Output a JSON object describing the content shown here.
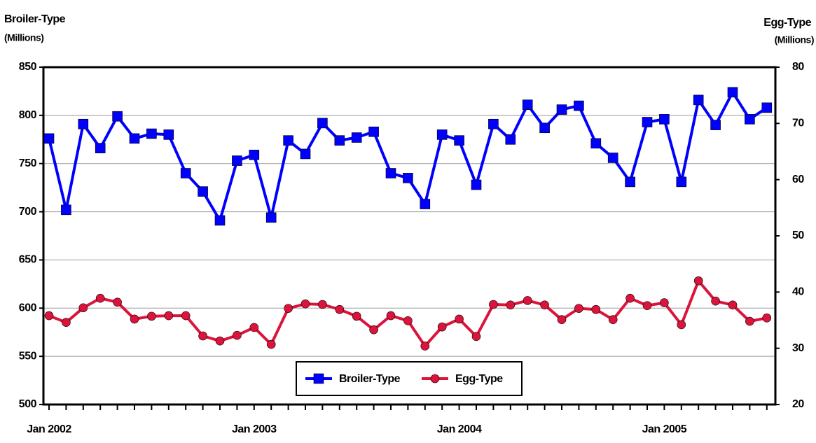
{
  "chart_data": {
    "type": "line",
    "y_label": "Broiler-Type",
    "y_sublabel": "(Millions)",
    "y2_label": "Egg-Type",
    "y2_sublabel": "(Millions)",
    "categories": [
      "Jan 2002",
      null,
      null,
      null,
      null,
      null,
      null,
      null,
      null,
      null,
      null,
      null,
      "Jan 2003",
      null,
      null,
      null,
      null,
      null,
      null,
      null,
      null,
      null,
      null,
      null,
      "Jan 2004",
      null,
      null,
      null,
      null,
      null,
      null,
      null,
      null,
      null,
      null,
      null,
      "Jan 2005",
      null,
      null,
      null,
      null,
      null,
      null
    ],
    "series": [
      {
        "name": "Broiler-Type",
        "color": "#0000ff",
        "marker": "square",
        "values": [
          776,
          702,
          791,
          766,
          799,
          776,
          781,
          780,
          740,
          721,
          691,
          753,
          759,
          694,
          774,
          760,
          792,
          774,
          777,
          783,
          740,
          735,
          708,
          780,
          774,
          728,
          791,
          775,
          811,
          787,
          806,
          810,
          771,
          756,
          731,
          793,
          796,
          731,
          816,
          790,
          824,
          796,
          808
        ]
      },
      {
        "name": "Egg-Type",
        "color": "#dc143c",
        "marker": "circle",
        "axis": "y2",
        "values": [
          35.8,
          34.6,
          37.2,
          38.9,
          38.2,
          35.2,
          35.7,
          35.8,
          35.8,
          32.2,
          31.3,
          32.3,
          33.7,
          30.7,
          37.1,
          37.9,
          37.8,
          36.9,
          35.7,
          33.3,
          35.8,
          34.9,
          30.4,
          33.8,
          35.2,
          32.1,
          37.8,
          37.7,
          38.5,
          37.7,
          35.1,
          37.1,
          36.9,
          35.1,
          38.9,
          37.6,
          38.1,
          34.2,
          42.0,
          38.4,
          37.7,
          34.8,
          35.4
        ]
      }
    ],
    "ylim": [
      500,
      850
    ],
    "yticks": [
      500,
      550,
      600,
      650,
      700,
      750,
      800,
      850
    ],
    "y2lim": [
      20,
      80
    ],
    "y2ticks": [
      20,
      30,
      40,
      50,
      60,
      70,
      80
    ],
    "grid": true,
    "legend": "bottom"
  }
}
